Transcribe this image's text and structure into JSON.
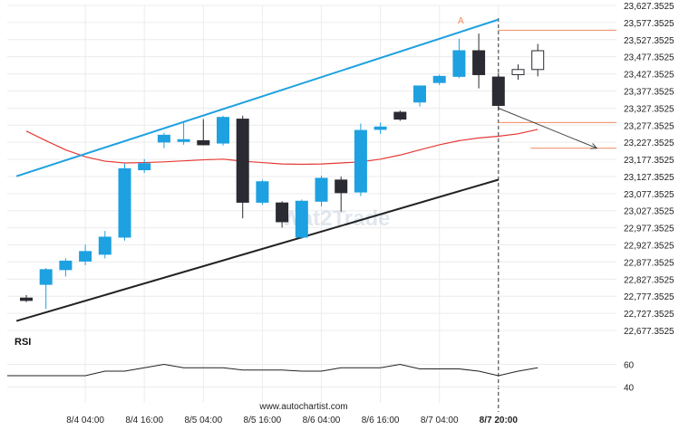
{
  "chart_data": {
    "type": "candlestick",
    "symbol": "",
    "watermark": "Wat2Trade",
    "footer": "www.autochartist.com",
    "y_axis": {
      "min": 22677.3525,
      "max": 23627.3525,
      "ticks": [
        "23,627.3525",
        "23,577.3525",
        "23,527.3525",
        "23,477.3525",
        "23,427.3525",
        "23,377.3525",
        "23,327.3525",
        "23,277.3525",
        "23,227.3525",
        "23,177.3525",
        "23,127.3525",
        "23,077.3525",
        "23,027.3525",
        "22,977.3525",
        "22,927.3525",
        "22,877.3525",
        "22,827.3525",
        "22,777.3525",
        "22,727.3525",
        "22,677.3525"
      ]
    },
    "x_axis": {
      "ticks": [
        {
          "label": "8/4 04:00",
          "index": 3
        },
        {
          "label": "8/4 16:00",
          "index": 6
        },
        {
          "label": "8/5 04:00",
          "index": 9
        },
        {
          "label": "8/5 16:00",
          "index": 12
        },
        {
          "label": "8/6 04:00",
          "index": 15
        },
        {
          "label": "8/6 16:00",
          "index": 18
        },
        {
          "label": "8/7 04:00",
          "index": 21
        },
        {
          "label": "8/7 20:00",
          "index": 24,
          "bold": true
        }
      ]
    },
    "candles": [
      {
        "o": 22772,
        "h": 22781,
        "l": 22760,
        "c": 22765
      },
      {
        "o": 22812,
        "h": 22860,
        "l": 22740,
        "c": 22855
      },
      {
        "o": 22855,
        "h": 22888,
        "l": 22835,
        "c": 22880
      },
      {
        "o": 22880,
        "h": 22928,
        "l": 22868,
        "c": 22908
      },
      {
        "o": 22900,
        "h": 22968,
        "l": 22888,
        "c": 22950
      },
      {
        "o": 22950,
        "h": 23165,
        "l": 22940,
        "c": 23150
      },
      {
        "o": 23147,
        "h": 23178,
        "l": 23138,
        "c": 23165
      },
      {
        "o": 23228,
        "h": 23255,
        "l": 23210,
        "c": 23248
      },
      {
        "o": 23235,
        "h": 23290,
        "l": 23220,
        "c": 23235
      },
      {
        "o": 23232,
        "h": 23295,
        "l": 23218,
        "c": 23220
      },
      {
        "o": 23225,
        "h": 23305,
        "l": 23218,
        "c": 23300
      },
      {
        "o": 23295,
        "h": 23305,
        "l": 23005,
        "c": 23052
      },
      {
        "o": 23052,
        "h": 23118,
        "l": 23045,
        "c": 23112
      },
      {
        "o": 23050,
        "h": 23055,
        "l": 22978,
        "c": 22995
      },
      {
        "o": 22950,
        "h": 23060,
        "l": 22945,
        "c": 23055
      },
      {
        "o": 23055,
        "h": 23130,
        "l": 23040,
        "c": 23122
      },
      {
        "o": 23117,
        "h": 23127,
        "l": 23025,
        "c": 23080
      },
      {
        "o": 23082,
        "h": 23282,
        "l": 23070,
        "c": 23262
      },
      {
        "o": 23265,
        "h": 23285,
        "l": 23252,
        "c": 23272
      },
      {
        "o": 23315,
        "h": 23320,
        "l": 23290,
        "c": 23295
      },
      {
        "o": 23345,
        "h": 23392,
        "l": 23332,
        "c": 23392
      },
      {
        "o": 23402,
        "h": 23425,
        "l": 23395,
        "c": 23420
      },
      {
        "o": 23420,
        "h": 23530,
        "l": 23415,
        "c": 23495
      },
      {
        "o": 23495,
        "h": 23545,
        "l": 23385,
        "c": 23425
      },
      {
        "o": 23418,
        "h": 23430,
        "l": 23320,
        "c": 23335
      },
      {
        "o": 23440,
        "h": 23455,
        "l": 23410,
        "c": 23425
      },
      {
        "o": 23495,
        "h": 23515,
        "l": 23420,
        "c": 23440
      }
    ],
    "projection_from_index": 25,
    "ma_series": {
      "x": [
        0,
        1,
        2,
        3,
        4,
        5,
        6,
        7,
        8,
        9,
        10,
        11,
        12,
        13,
        14,
        15,
        16,
        17,
        18,
        19,
        20,
        21,
        22,
        23,
        24,
        25,
        26
      ],
      "y": [
        23260,
        23232,
        23205,
        23185,
        23172,
        23167,
        23168,
        23170,
        23173,
        23176,
        23178,
        23172,
        23168,
        23164,
        23163,
        23164,
        23167,
        23170,
        23178,
        23190,
        23205,
        23220,
        23232,
        23240,
        23245,
        23252,
        23265
      ]
    },
    "channel_upper": {
      "x0": -0.5,
      "y0": 23128,
      "x1": 24,
      "y1": 23586
    },
    "channel_lower": {
      "x0": -0.5,
      "y0": 22705,
      "x1": 24,
      "y1": 23118
    },
    "resistance_line": {
      "value": 23555,
      "from_index": 24
    },
    "support_line": {
      "value": 23285,
      "from_index": 24
    },
    "target_line": {
      "value": 23210,
      "from_index": 26
    },
    "forecast_arrow": {
      "x0": 24,
      "y0": 23327,
      "x1": 29,
      "y1": 23210
    },
    "pattern_label": "A",
    "rsi": {
      "label": "RSI",
      "ticks": [
        60,
        40
      ],
      "ylim": [
        30,
        70
      ],
      "values": [
        50,
        50,
        50,
        50,
        54,
        54,
        57,
        60,
        57,
        57,
        57,
        55,
        55,
        55,
        54,
        54,
        57,
        57,
        57,
        60,
        56,
        56,
        56,
        54,
        50,
        54,
        57
      ]
    }
  }
}
